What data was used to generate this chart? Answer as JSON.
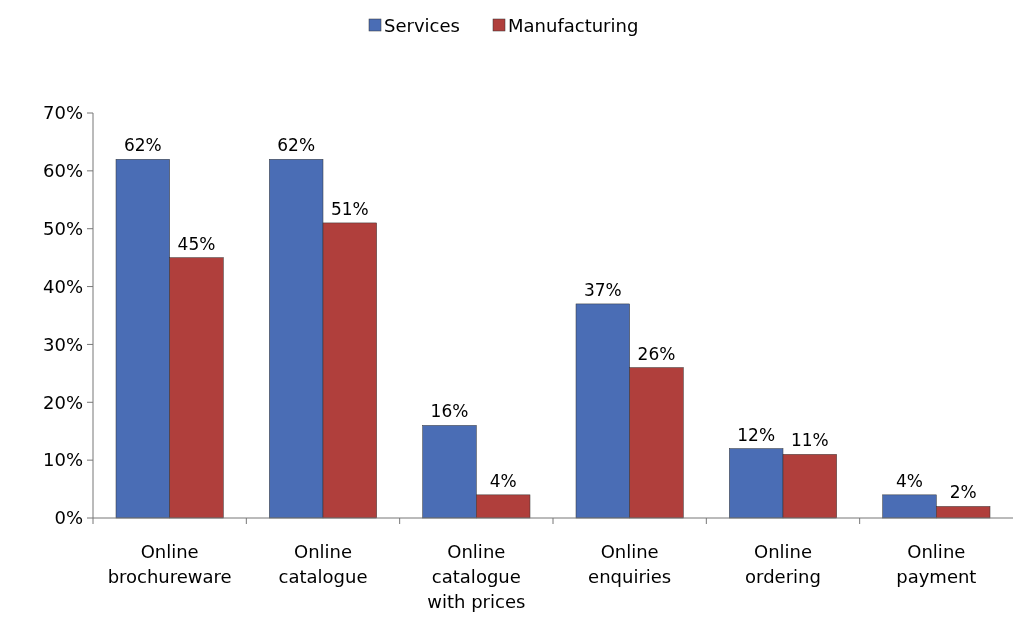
{
  "chart_data": {
    "type": "bar",
    "categories": [
      "Online brochureware",
      "Online catalogue",
      "Online catalogue with prices",
      "Online enquiries",
      "Online ordering",
      "Online payment"
    ],
    "series": [
      {
        "name": "Services",
        "color": "#4a6db5",
        "values": [
          62,
          62,
          16,
          37,
          12,
          4
        ]
      },
      {
        "name": "Manufacturing",
        "color": "#b03f3c",
        "values": [
          45,
          51,
          4,
          26,
          11,
          2
        ]
      }
    ],
    "ylim": [
      0,
      70
    ],
    "yticks": [
      {
        "value": 0,
        "label": "0%"
      },
      {
        "value": 10,
        "label": "10%"
      },
      {
        "value": 20,
        "label": "20%"
      },
      {
        "value": 30,
        "label": "30%"
      },
      {
        "value": 40,
        "label": "40%"
      },
      {
        "value": 50,
        "label": "50%"
      },
      {
        "value": 60,
        "label": "60%"
      },
      {
        "value": 70,
        "label": "70%"
      }
    ],
    "value_labels": [
      [
        "62%",
        "62%",
        "16%",
        "37%",
        "12%",
        "4%"
      ],
      [
        "45%",
        "51%",
        "4%",
        "26%",
        "11%",
        "2%"
      ]
    ],
    "legend": "top",
    "grid": false
  }
}
